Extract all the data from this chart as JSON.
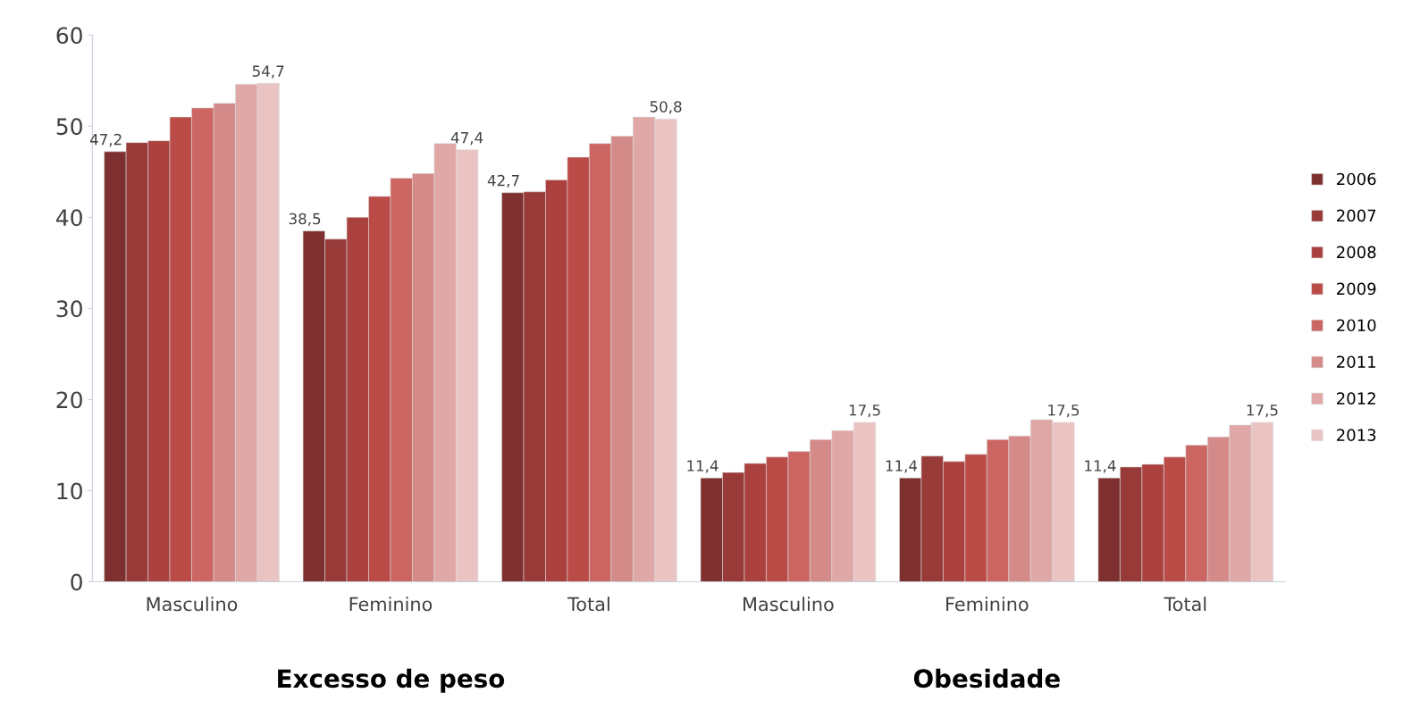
{
  "chart_data": {
    "type": "bar",
    "categories": [
      "Masculino",
      "Feminino",
      "Total",
      "Masculino",
      "Feminino",
      "Total"
    ],
    "series": [
      {
        "name": "2006",
        "color": "#7e2f2f",
        "values": [
          47.2,
          38.5,
          42.7,
          11.4,
          11.4,
          11.4
        ],
        "value_labels": [
          "47,2",
          "38,5",
          "42,7",
          "11,4",
          "11,4",
          "11,4"
        ]
      },
      {
        "name": "2007",
        "color": "#973a38",
        "values": [
          48.2,
          37.6,
          42.8,
          12.0,
          13.8,
          12.6
        ]
      },
      {
        "name": "2008",
        "color": "#aa413e",
        "values": [
          48.4,
          40.0,
          44.1,
          13.0,
          13.2,
          12.9
        ]
      },
      {
        "name": "2009",
        "color": "#bb4b47",
        "values": [
          51.0,
          42.3,
          46.6,
          13.7,
          14.0,
          13.7
        ]
      },
      {
        "name": "2010",
        "color": "#cc6663",
        "values": [
          52.0,
          44.3,
          48.1,
          14.3,
          15.6,
          15.0
        ]
      },
      {
        "name": "2011",
        "color": "#d48a88",
        "values": [
          52.5,
          44.8,
          48.9,
          15.6,
          16.0,
          15.9
        ]
      },
      {
        "name": "2012",
        "color": "#dfa7a6",
        "values": [
          54.6,
          48.1,
          51.0,
          16.6,
          17.8,
          17.2
        ]
      },
      {
        "name": "2013",
        "color": "#eac4c3",
        "values": [
          54.7,
          47.4,
          50.8,
          17.5,
          17.5,
          17.5
        ],
        "value_labels": [
          "54,7",
          "47,4",
          "50,8",
          "17,5",
          "17,5",
          "17,5"
        ]
      }
    ],
    "ylim": [
      0,
      60
    ],
    "yticks": [
      0,
      10,
      20,
      30,
      40,
      50,
      60
    ],
    "legend": "right",
    "grid": false,
    "annotations": [
      "Excesso de peso",
      "Obesidade"
    ]
  }
}
